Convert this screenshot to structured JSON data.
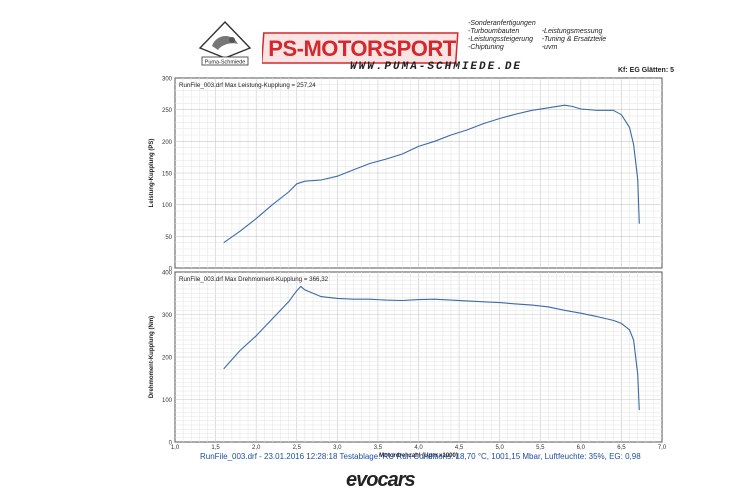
{
  "header": {
    "logo_text": "Puma-Schmiede",
    "brand": "PS-MOTORSPORT",
    "website": "WWW.PUMA-SCHMIEDE.DE",
    "services_left": [
      "-Sonderanfertigungen",
      "-Turboumbauten",
      "-Leistungssteigerung",
      "-Chiptuning"
    ],
    "services_right": [
      "-Leistungsmessung",
      "-Tuning & Ersatzteile",
      "-uvm"
    ],
    "kf_label": "Kf: EG  Glätten: 5",
    "brand_color": "#d4282c"
  },
  "footer": {
    "info": "RunFile_003.drf - 23.01.2016 12:28:18  Testablage: RU  Run Conditions: 18,70 °C, 1001,15 Mbar,  Luftfeuchte: 35%, EG: 0,98",
    "brand": "evocars"
  },
  "chart_data": [
    {
      "type": "line",
      "title": "RunFile_003.drf Max Leistung-Kupplung = 257,24",
      "ylabel": "Leistung-Kupplung (PS)",
      "xlabel": "",
      "xlim": [
        1.0,
        7.0
      ],
      "ylim": [
        0,
        300
      ],
      "yticks": [
        0,
        50,
        100,
        150,
        200,
        250,
        300
      ],
      "grid": true,
      "line_color": "#3a6aa8",
      "series": [
        {
          "x": [
            1.6,
            1.8,
            2.0,
            2.2,
            2.4,
            2.5,
            2.6,
            2.8,
            3.0,
            3.2,
            3.4,
            3.6,
            3.8,
            4.0,
            4.2,
            4.4,
            4.6,
            4.8,
            5.0,
            5.2,
            5.4,
            5.6,
            5.8,
            5.9,
            6.0,
            6.2,
            6.4,
            6.5,
            6.6,
            6.65,
            6.7,
            6.72
          ],
          "values": [
            40,
            58,
            78,
            100,
            120,
            133,
            137,
            139,
            145,
            155,
            165,
            172,
            180,
            192,
            200,
            210,
            218,
            228,
            236,
            243,
            249,
            253,
            257,
            255,
            251,
            249,
            249,
            242,
            222,
            195,
            140,
            70
          ]
        }
      ]
    },
    {
      "type": "line",
      "title": "RunFile_003.drf Max Drehmoment-Kupplung = 366,32",
      "ylabel": "Drehmoment-Kupplung (Nm)",
      "xlabel": "Motordrehzahl (Upm x1000)",
      "xlim": [
        1.0,
        7.0
      ],
      "ylim": [
        0,
        400
      ],
      "yticks": [
        0,
        100,
        200,
        300,
        400
      ],
      "xticks": [
        "1,0",
        "1,5",
        "2,0",
        "2,5",
        "3,0",
        "3,5",
        "4,0",
        "4,5",
        "5,0",
        "5,5",
        "6,0",
        "6,5",
        "7,0"
      ],
      "grid": true,
      "line_color": "#3a6aa8",
      "series": [
        {
          "x": [
            1.6,
            1.8,
            2.0,
            2.2,
            2.4,
            2.5,
            2.55,
            2.6,
            2.8,
            3.0,
            3.2,
            3.4,
            3.6,
            3.8,
            4.0,
            4.2,
            4.4,
            4.6,
            4.8,
            5.0,
            5.2,
            5.4,
            5.6,
            5.8,
            6.0,
            6.2,
            6.4,
            6.5,
            6.6,
            6.65,
            6.7,
            6.72
          ],
          "values": [
            172,
            215,
            250,
            290,
            330,
            356,
            366,
            358,
            342,
            338,
            336,
            336,
            334,
            333,
            335,
            336,
            334,
            332,
            330,
            328,
            325,
            322,
            318,
            310,
            303,
            295,
            286,
            279,
            264,
            240,
            160,
            75
          ]
        }
      ]
    }
  ]
}
